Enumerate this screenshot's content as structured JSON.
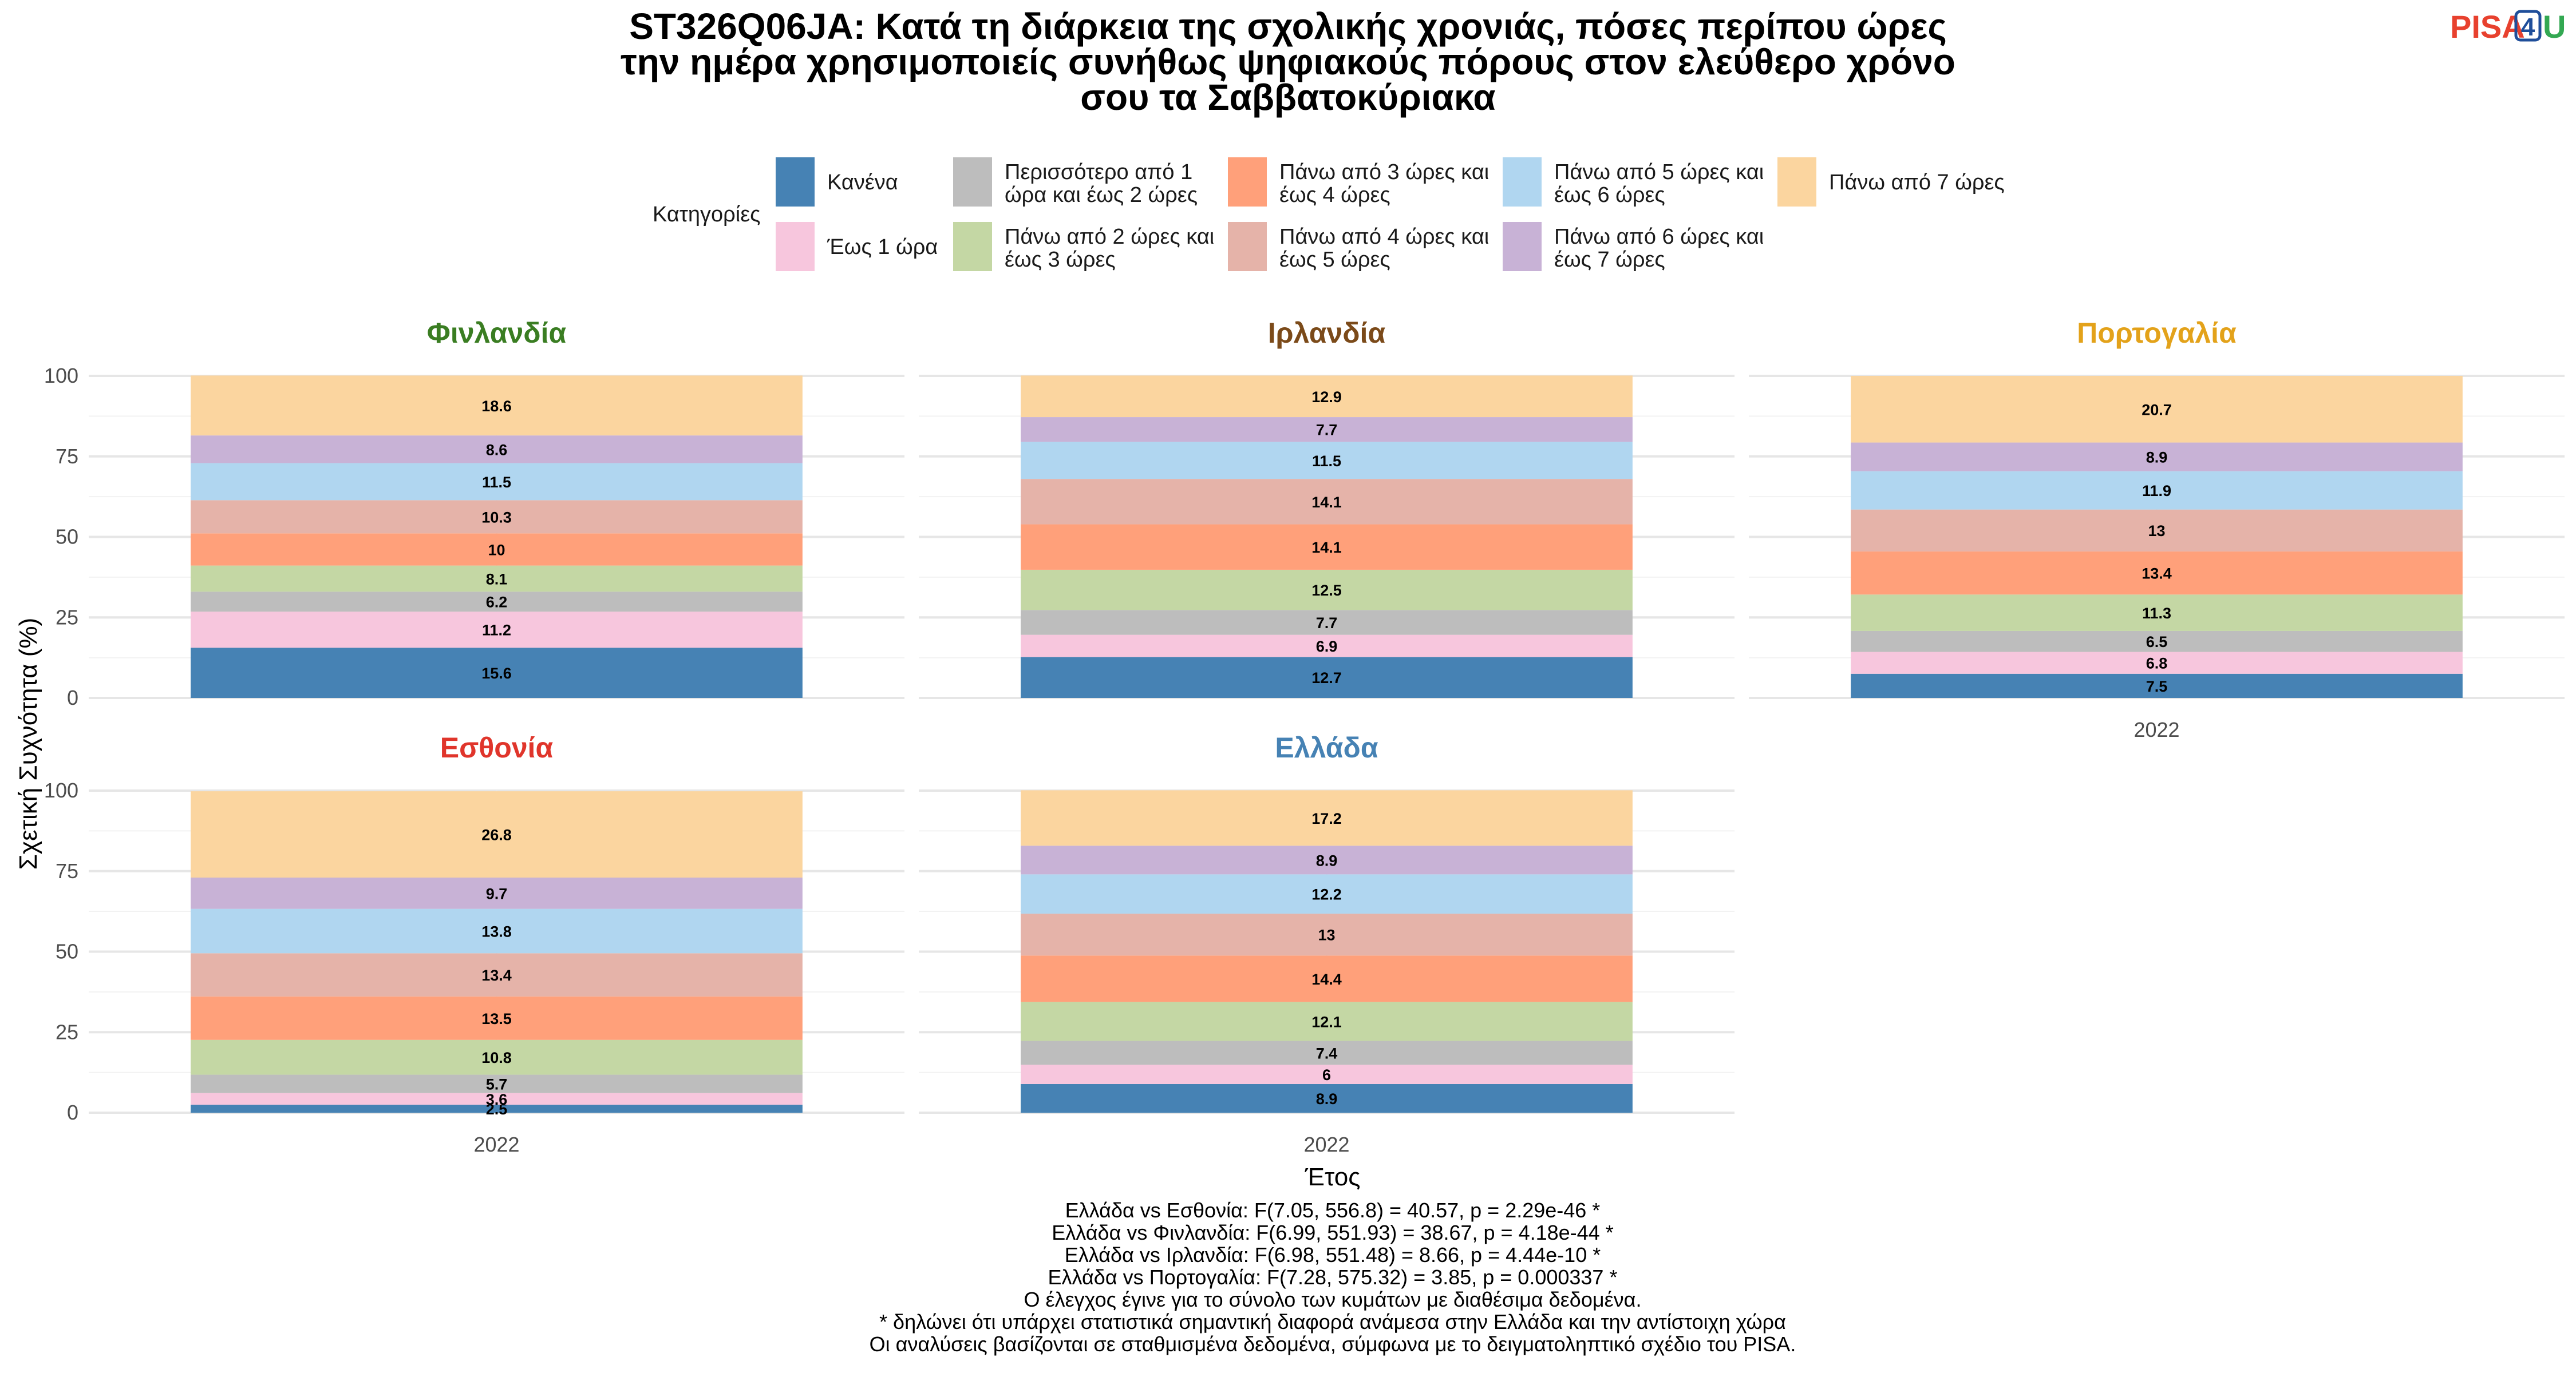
{
  "title_lines": [
    "ST326Q06JA: Κατά τη διάρκεια της σχολικής χρονιάς, πόσες περίπου ώρες",
    "την ημέρα χρησιμοποιείς συνήθως ψηφιακούς πόρους στον ελεύθερο χρόνο",
    "σου τα Σαββατοκύριακα"
  ],
  "logo": {
    "pisa": "PISA",
    "four": "4",
    "u": "U"
  },
  "legend": {
    "title": "Κατηγορίες",
    "items": [
      {
        "lines": [
          "Κανένα"
        ],
        "color": "#4682B4"
      },
      {
        "lines": [
          "Έως 1 ώρα"
        ],
        "color": "#F7C6DD"
      },
      {
        "lines": [
          "Περισσότερο από 1",
          "ώρα και έως 2 ώρες"
        ],
        "color": "#BDBDBD"
      },
      {
        "lines": [
          "Πάνω από 2 ώρες και",
          "έως 3 ώρες"
        ],
        "color": "#C4D7A4"
      },
      {
        "lines": [
          "Πάνω από 3 ώρες και",
          "έως 4 ώρες"
        ],
        "color": "#FFA07A"
      },
      {
        "lines": [
          "Πάνω από 4 ώρες και",
          "έως 5 ώρες"
        ],
        "color": "#E5B3A9"
      },
      {
        "lines": [
          "Πάνω από 5 ώρες και",
          "έως 6 ώρες"
        ],
        "color": "#B0D6F0"
      },
      {
        "lines": [
          "Πάνω από 6 ώρες και",
          "έως 7 ώρες"
        ],
        "color": "#C8B2D6"
      },
      {
        "lines": [
          "Πάνω από 7 ώρες"
        ],
        "color": "#FBD59F"
      }
    ]
  },
  "axes": {
    "xlabel": "Έτος",
    "ylabel": "Σχετική Συχνότητα (%)",
    "yticks": [
      0,
      25,
      50,
      75,
      100
    ],
    "ylim": [
      0,
      100
    ]
  },
  "chart_data": {
    "type": "bar",
    "stacked": true,
    "categories": [
      "2022"
    ],
    "panels": [
      {
        "name": "Φινλανδία",
        "color": "#3A7D22",
        "values": [
          15.6,
          11.2,
          6.2,
          8.1,
          10,
          10.3,
          11.5,
          8.6,
          18.6
        ]
      },
      {
        "name": "Ιρλανδία",
        "color": "#7B4A19",
        "values": [
          12.7,
          6.9,
          7.7,
          12.5,
          14.1,
          14.1,
          11.5,
          7.7,
          12.9
        ]
      },
      {
        "name": "Πορτογαλία",
        "color": "#E3A21A",
        "values": [
          7.5,
          6.8,
          6.5,
          11.3,
          13.4,
          13,
          11.9,
          8.9,
          20.7
        ]
      },
      {
        "name": "Εσθονία",
        "color": "#E0352B",
        "values": [
          2.5,
          3.6,
          5.7,
          10.8,
          13.5,
          13.4,
          13.8,
          9.7,
          26.8
        ]
      },
      {
        "name": "Ελλάδα",
        "color": "#4682B4",
        "values": [
          8.9,
          6,
          7.4,
          12.1,
          14.4,
          13,
          12.2,
          8.9,
          17.2
        ]
      }
    ]
  },
  "footnotes": [
    "Ελλάδα vs Εσθονία: F(7.05, 556.8) = 40.57, p = 2.29e-46 *",
    "Ελλάδα vs Φινλανδία: F(6.99, 551.93) = 38.67, p = 4.18e-44 *",
    "Ελλάδα vs Ιρλανδία: F(6.98, 551.48) = 8.66, p = 4.44e-10 *",
    "Ελλάδα vs Πορτογαλία: F(7.28, 575.32) = 3.85, p = 0.000337 *",
    "Ο έλεγχος έγινε για το σύνολο των κυμάτων με διαθέσιμα δεδομένα.",
    "* δηλώνει ότι υπάρχει στατιστικά σημαντική διαφορά ανάμεσα στην Ελλάδα και την αντίστοιχη χώρα",
    "Οι αναλύσεις βασίζονται σε σταθμισμένα δεδομένα, σύμφωνα με το δειγματοληπτικό σχέδιο του PISA."
  ]
}
